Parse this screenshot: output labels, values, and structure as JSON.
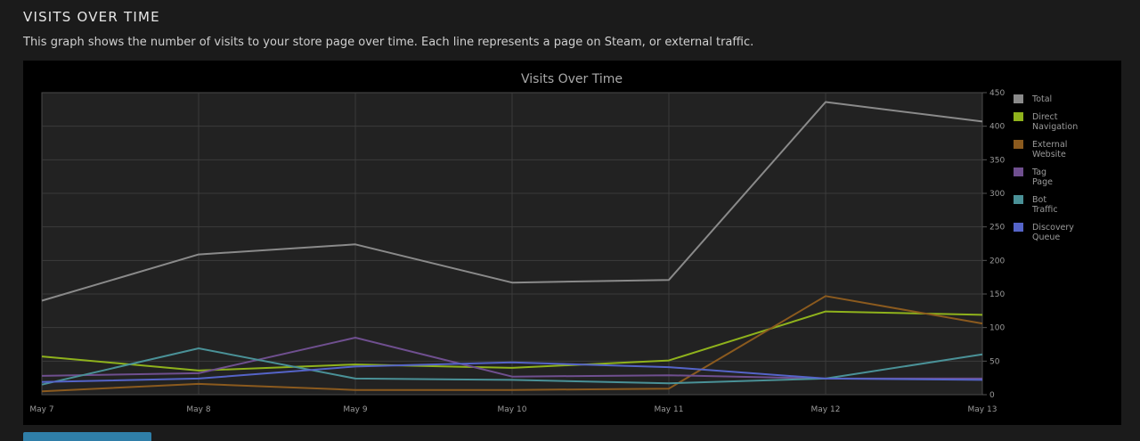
{
  "section": {
    "title": "VISITS OVER TIME",
    "description": "This graph shows the number of visits to your store page over time. Each line represents a page on Steam, or external traffic."
  },
  "chart_data": {
    "type": "line",
    "title": "Visits Over Time",
    "xlabel": "",
    "ylabel": "",
    "categories": [
      "May 7",
      "May 8",
      "May 9",
      "May 10",
      "May 11",
      "May 12",
      "May 13"
    ],
    "ylim": [
      0,
      450
    ],
    "yticks": [
      0,
      50,
      100,
      150,
      200,
      250,
      300,
      350,
      400,
      450
    ],
    "grid": true,
    "legend_position": "right",
    "series": [
      {
        "name": "Total",
        "color": "#8a8a8a",
        "values": [
          140,
          209,
          224,
          167,
          171,
          436,
          407
        ]
      },
      {
        "name": "Direct Navigation",
        "color": "#8fb21c",
        "values": [
          57,
          36,
          45,
          40,
          51,
          124,
          119
        ]
      },
      {
        "name": "External Website",
        "color": "#8b5a1e",
        "values": [
          5,
          16,
          7,
          7,
          9,
          147,
          106
        ]
      },
      {
        "name": "Tag Page",
        "color": "#6f4f8f",
        "values": [
          28,
          32,
          85,
          27,
          29,
          24,
          24
        ]
      },
      {
        "name": "Bot Traffic",
        "color": "#4a9197",
        "values": [
          15,
          69,
          24,
          22,
          17,
          24,
          60
        ]
      },
      {
        "name": "Discovery Queue",
        "color": "#5564c8",
        "values": [
          19,
          24,
          42,
          48,
          41,
          24,
          22
        ]
      }
    ]
  }
}
